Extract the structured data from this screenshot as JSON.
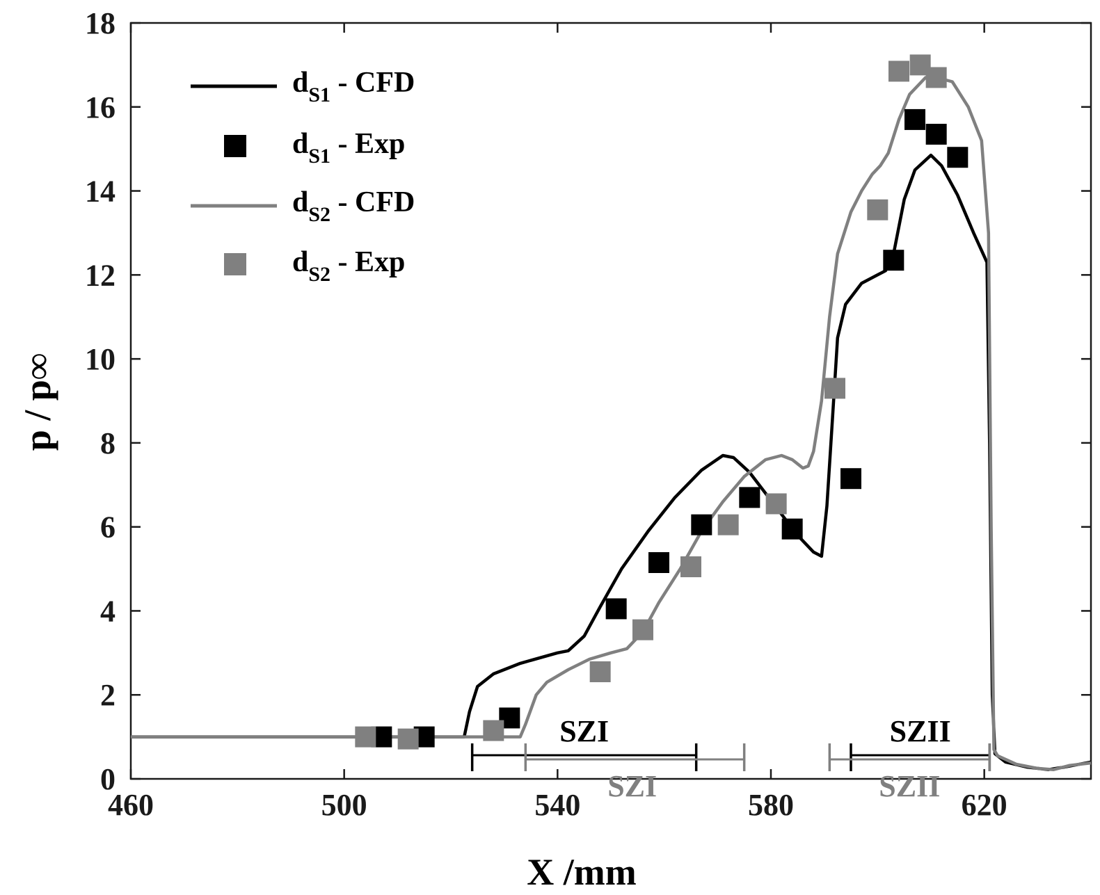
{
  "chart_data": {
    "type": "line",
    "xlabel": "X /mm",
    "ylabel": "p / p∞",
    "xlim": [
      460,
      640
    ],
    "ylim": [
      0,
      18
    ],
    "xticks": [
      460,
      500,
      540,
      580,
      620
    ],
    "yticks": [
      0,
      2,
      4,
      6,
      8,
      10,
      12,
      14,
      16,
      18
    ],
    "colors": {
      "s1": "#000000",
      "s2": "#808080"
    },
    "legend_position": "top-left",
    "legend": [
      {
        "main": "d",
        "sub": "S1",
        "suffix": "  - CFD",
        "kind": "line",
        "series": "s1"
      },
      {
        "main": "d",
        "sub": "S1",
        "suffix": "  - Exp",
        "kind": "marker",
        "series": "s1"
      },
      {
        "main": "d",
        "sub": "S2",
        "suffix": "  - CFD",
        "kind": "line",
        "series": "s2"
      },
      {
        "main": "d",
        "sub": "S2",
        "suffix": "  - Exp",
        "kind": "marker",
        "series": "s2"
      }
    ],
    "series": [
      {
        "name": "dS1 - CFD",
        "kind": "line",
        "color": "#000000",
        "points": [
          [
            460,
            1.0
          ],
          [
            522.5,
            1.0
          ],
          [
            523.5,
            1.6
          ],
          [
            525,
            2.2
          ],
          [
            528,
            2.5
          ],
          [
            533,
            2.75
          ],
          [
            540,
            3.0
          ],
          [
            542,
            3.05
          ],
          [
            545,
            3.4
          ],
          [
            548,
            4.1
          ],
          [
            552,
            5.0
          ],
          [
            557,
            5.9
          ],
          [
            562,
            6.7
          ],
          [
            567,
            7.35
          ],
          [
            571,
            7.7
          ],
          [
            573,
            7.65
          ],
          [
            576,
            7.3
          ],
          [
            579,
            6.8
          ],
          [
            582,
            6.3
          ],
          [
            585,
            5.8
          ],
          [
            588,
            5.4
          ],
          [
            589.5,
            5.3
          ],
          [
            590.5,
            6.5
          ],
          [
            591.5,
            8.5
          ],
          [
            592.5,
            10.5
          ],
          [
            594,
            11.3
          ],
          [
            597,
            11.8
          ],
          [
            600,
            12.0
          ],
          [
            601.5,
            12.1
          ],
          [
            603,
            12.5
          ],
          [
            605,
            13.8
          ],
          [
            607,
            14.5
          ],
          [
            610,
            14.85
          ],
          [
            612,
            14.6
          ],
          [
            615,
            13.9
          ],
          [
            618,
            13.0
          ],
          [
            620.5,
            12.3
          ],
          [
            621,
            8.0
          ],
          [
            621.5,
            2.0
          ],
          [
            622,
            0.6
          ],
          [
            624,
            0.4
          ],
          [
            628,
            0.28
          ],
          [
            632,
            0.22
          ],
          [
            635,
            0.28
          ],
          [
            640,
            0.4
          ]
        ]
      },
      {
        "name": "dS2 - CFD",
        "kind": "line",
        "color": "#808080",
        "points": [
          [
            460,
            1.0
          ],
          [
            533,
            1.0
          ],
          [
            534,
            1.3
          ],
          [
            536,
            2.0
          ],
          [
            538,
            2.3
          ],
          [
            542,
            2.6
          ],
          [
            546,
            2.85
          ],
          [
            550,
            3.0
          ],
          [
            553,
            3.1
          ],
          [
            556,
            3.5
          ],
          [
            559,
            4.2
          ],
          [
            563,
            5.0
          ],
          [
            567,
            5.9
          ],
          [
            571,
            6.6
          ],
          [
            575,
            7.2
          ],
          [
            579,
            7.6
          ],
          [
            582,
            7.7
          ],
          [
            584,
            7.6
          ],
          [
            586,
            7.4
          ],
          [
            587,
            7.45
          ],
          [
            588,
            7.8
          ],
          [
            589.5,
            9.0
          ],
          [
            591,
            11.0
          ],
          [
            592.5,
            12.5
          ],
          [
            595,
            13.5
          ],
          [
            597,
            14.0
          ],
          [
            599,
            14.4
          ],
          [
            600.5,
            14.6
          ],
          [
            602,
            14.9
          ],
          [
            604,
            15.7
          ],
          [
            606,
            16.3
          ],
          [
            609,
            16.7
          ],
          [
            611,
            16.7
          ],
          [
            614,
            16.6
          ],
          [
            617,
            16.0
          ],
          [
            619.5,
            15.2
          ],
          [
            620.8,
            13.0
          ],
          [
            621.3,
            6.0
          ],
          [
            621.8,
            0.7
          ],
          [
            622.5,
            0.55
          ],
          [
            626,
            0.35
          ],
          [
            630,
            0.25
          ],
          [
            633,
            0.22
          ],
          [
            636,
            0.32
          ],
          [
            640,
            0.38
          ]
        ]
      },
      {
        "name": "dS1 - Exp",
        "kind": "marker",
        "color": "#000000",
        "points": [
          [
            507,
            1.0
          ],
          [
            515,
            1.0
          ],
          [
            531,
            1.45
          ],
          [
            551,
            4.05
          ],
          [
            559,
            5.15
          ],
          [
            567,
            6.05
          ],
          [
            576,
            6.7
          ],
          [
            584,
            5.95
          ],
          [
            595,
            7.15
          ],
          [
            603,
            12.35
          ],
          [
            607,
            15.7
          ],
          [
            611,
            15.35
          ],
          [
            615,
            14.8
          ]
        ]
      },
      {
        "name": "dS2 - Exp",
        "kind": "marker",
        "color": "#808080",
        "points": [
          [
            504,
            1.0
          ],
          [
            512,
            0.95
          ],
          [
            528,
            1.15
          ],
          [
            548,
            2.55
          ],
          [
            556,
            3.55
          ],
          [
            565,
            5.05
          ],
          [
            572,
            6.05
          ],
          [
            581,
            6.55
          ],
          [
            592,
            9.3
          ],
          [
            600,
            13.55
          ],
          [
            604,
            16.85
          ],
          [
            608,
            17.0
          ],
          [
            611,
            16.7
          ]
        ]
      }
    ],
    "zones": [
      {
        "label": "SZI",
        "color": "#000000",
        "x_start": 524,
        "x_end": 566,
        "label_x": 545,
        "label_pos": "above"
      },
      {
        "label": "SZII",
        "color": "#000000",
        "x_start": 595,
        "x_end": 621,
        "label_x": 608,
        "label_pos": "above"
      },
      {
        "label": "SZI",
        "color": "#808080",
        "x_start": 534,
        "x_end": 575,
        "label_x": 554,
        "label_pos": "below"
      },
      {
        "label": "SZII",
        "color": "#808080",
        "x_start": 591,
        "x_end": 621,
        "label_x": 606,
        "label_pos": "below"
      }
    ]
  }
}
